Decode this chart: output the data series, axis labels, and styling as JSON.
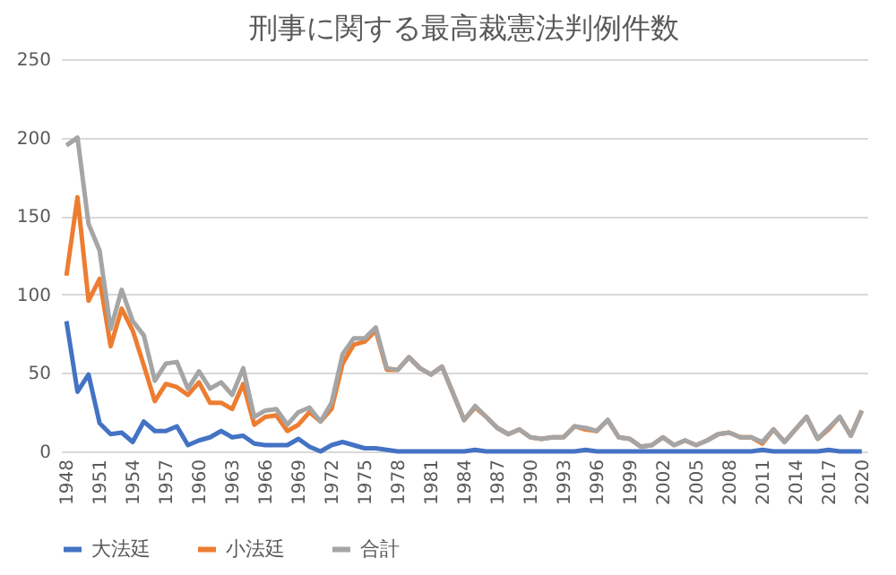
{
  "chart_data": {
    "type": "line",
    "title": "刑事に関する最高裁憲法判例件数",
    "categories": [
      "1948",
      null,
      null,
      "1951",
      null,
      null,
      "1954",
      null,
      null,
      "1957",
      null,
      null,
      "1960",
      null,
      null,
      "1963",
      null,
      null,
      "1966",
      null,
      null,
      "1969",
      null,
      null,
      "1972",
      null,
      null,
      "1975",
      null,
      null,
      "1978",
      null,
      null,
      "1981",
      null,
      null,
      "1984",
      null,
      null,
      "1987",
      null,
      null,
      "1990",
      null,
      null,
      "1993",
      null,
      null,
      "1996",
      null,
      null,
      "1999",
      null,
      null,
      "2002",
      null,
      null,
      "2005",
      null,
      null,
      "2008",
      null,
      null,
      "2011",
      null,
      null,
      "2014",
      null,
      null,
      "2017",
      null,
      null,
      "2020"
    ],
    "series": [
      {
        "name": "大法廷",
        "color": "#4472c4",
        "values": [
          83,
          38,
          49,
          18,
          11,
          12,
          6,
          19,
          13,
          13,
          16,
          4,
          7,
          9,
          13,
          9,
          10,
          5,
          4,
          4,
          4,
          8,
          3,
          0,
          4,
          6,
          4,
          2,
          2,
          1,
          0,
          0,
          0,
          0,
          0,
          0,
          0,
          1,
          0,
          0,
          0,
          0,
          0,
          0,
          0,
          0,
          0,
          1,
          0,
          0,
          0,
          0,
          0,
          0,
          0,
          0,
          0,
          0,
          0,
          0,
          0,
          0,
          0,
          1,
          0,
          0,
          0,
          0,
          0,
          1,
          0,
          0,
          0
        ]
      },
      {
        "name": "小法廷",
        "color": "#ed7d31",
        "values": [
          112,
          162,
          96,
          110,
          67,
          91,
          77,
          55,
          32,
          43,
          41,
          36,
          44,
          31,
          31,
          27,
          43,
          17,
          22,
          23,
          13,
          17,
          25,
          19,
          27,
          56,
          68,
          70,
          77,
          52,
          52,
          60,
          53,
          49,
          54,
          37,
          20,
          28,
          22,
          15,
          11,
          14,
          9,
          8,
          9,
          9,
          16,
          14,
          13,
          20,
          9,
          8,
          3,
          4,
          9,
          4,
          7,
          4,
          7,
          11,
          12,
          9,
          9,
          5,
          14,
          6,
          14,
          22,
          8,
          14,
          22,
          10,
          26
        ]
      },
      {
        "name": "合計",
        "color": "#a5a5a5",
        "values": [
          195,
          200,
          145,
          128,
          78,
          103,
          83,
          74,
          45,
          56,
          57,
          40,
          51,
          40,
          44,
          36,
          53,
          22,
          26,
          27,
          17,
          25,
          28,
          19,
          31,
          62,
          72,
          72,
          79,
          53,
          52,
          60,
          53,
          49,
          54,
          37,
          20,
          29,
          22,
          15,
          11,
          14,
          9,
          8,
          9,
          9,
          16,
          15,
          13,
          20,
          9,
          8,
          3,
          4,
          9,
          4,
          7,
          4,
          7,
          11,
          12,
          9,
          9,
          6,
          14,
          6,
          14,
          22,
          8,
          15,
          22,
          10,
          26
        ]
      }
    ],
    "ylim": [
      0,
      250
    ],
    "yticks": [
      0,
      50,
      100,
      150,
      200,
      250
    ],
    "grid": "y",
    "legend": "bottom",
    "marker": "none",
    "line_style": "solid"
  }
}
